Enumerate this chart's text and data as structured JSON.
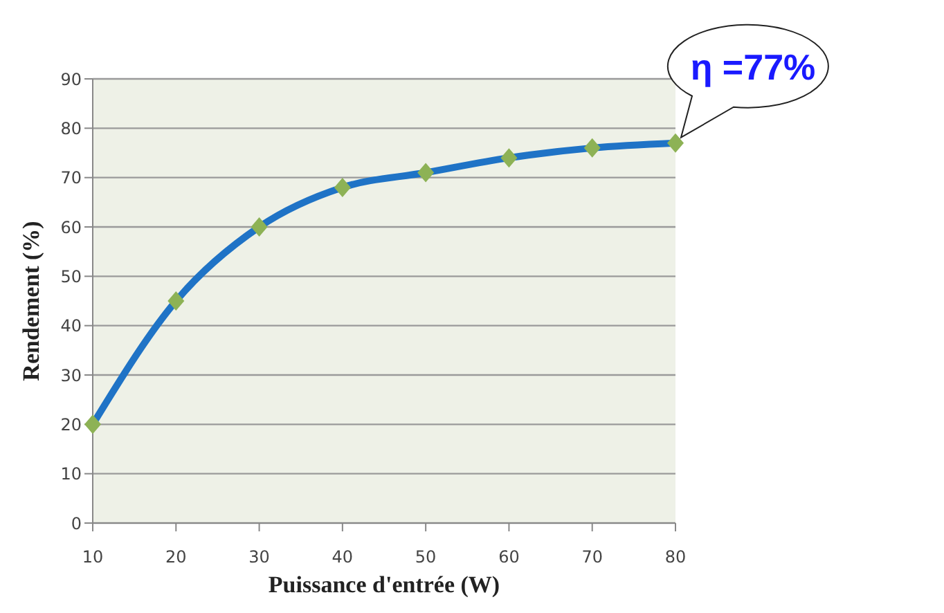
{
  "chart_data": {
    "type": "line",
    "xlabel": "Puissance d'entrée  (W)",
    "ylabel": "Rendement  (%)",
    "categories": [
      "10",
      "20",
      "30",
      "40",
      "50",
      "60",
      "70",
      "80"
    ],
    "series": [
      {
        "color": "#1f73c6",
        "values": [
          20,
          45,
          60,
          68,
          71,
          74,
          76,
          77
        ]
      }
    ],
    "ylim": [
      0,
      90
    ],
    "yticks": [
      0,
      10,
      20,
      30,
      40,
      50,
      60,
      70,
      80,
      90
    ],
    "grid": "y",
    "marker": "diamond",
    "line_style": "solid",
    "legend": false,
    "annotations": [
      {
        "text": "η =77%",
        "x": "80",
        "y": 77
      }
    ]
  }
}
